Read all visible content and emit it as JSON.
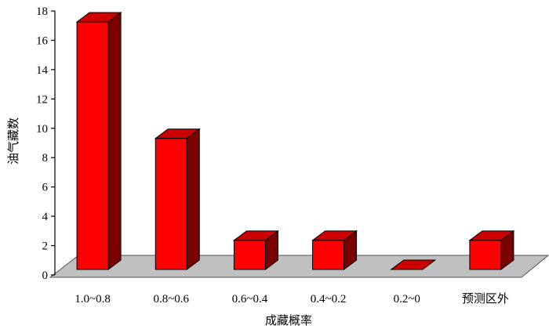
{
  "chart_data": {
    "type": "bar",
    "style": "3d",
    "categories": [
      "1.0~0.8",
      "0.8~0.6",
      "0.6~0.4",
      "0.4~0.2",
      "0.2~0",
      "预测区外"
    ],
    "values": [
      17,
      9,
      2,
      2,
      0,
      2
    ],
    "xlabel": "成藏概率",
    "ylabel": "油气藏数",
    "ylim": [
      0,
      18
    ],
    "yticks": [
      0,
      2,
      4,
      6,
      8,
      10,
      12,
      14,
      16,
      18
    ],
    "grid": false,
    "legend": "none",
    "colors": {
      "bar_front": "#ff0000",
      "bar_top": "#cc0000",
      "bar_side": "#7a0000",
      "floor": "#c0c0c0"
    }
  }
}
